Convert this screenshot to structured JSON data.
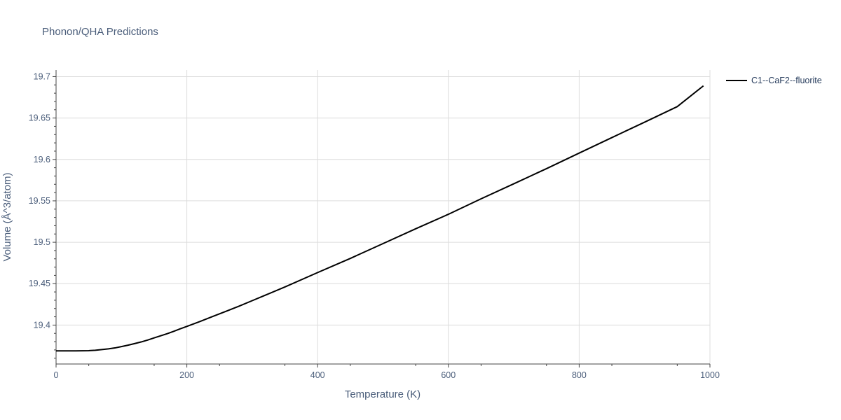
{
  "chart_data": {
    "type": "line",
    "title": "Phonon/QHA Predictions",
    "xlabel": "Temperature (K)",
    "ylabel": "Volume (Å^3/atom)",
    "xlim": [
      0,
      1000
    ],
    "ylim": [
      19.353,
      19.708
    ],
    "x_ticks": [
      0,
      200,
      400,
      600,
      800,
      1000
    ],
    "y_ticks": [
      19.4,
      19.45,
      19.5,
      19.55,
      19.6,
      19.65,
      19.7
    ],
    "x_tick_labels": [
      "0",
      "200",
      "400",
      "600",
      "800",
      "1000"
    ],
    "y_tick_labels": [
      "19.4",
      "19.45",
      "19.5",
      "19.55",
      "19.6",
      "19.65",
      "19.7"
    ],
    "grid": true,
    "legend_position": "top-right",
    "series": [
      {
        "name": "C1--CaF2--fluorite",
        "color": "#000000",
        "x": [
          0,
          10,
          20,
          30,
          40,
          50,
          60,
          70,
          80,
          90,
          100,
          110,
          120,
          130,
          140,
          150,
          160,
          170,
          180,
          190,
          200,
          220,
          240,
          260,
          280,
          300,
          350,
          400,
          450,
          500,
          550,
          600,
          650,
          700,
          750,
          800,
          850,
          900,
          950,
          990
        ],
        "y": [
          19.3688,
          19.3688,
          19.3689,
          19.3689,
          19.369,
          19.3691,
          19.3696,
          19.3704,
          19.3713,
          19.3724,
          19.374,
          19.3757,
          19.3776,
          19.3796,
          19.3819,
          19.3845,
          19.3871,
          19.3896,
          19.3925,
          19.3955,
          19.3984,
          19.4043,
          19.4105,
          19.4167,
          19.4229,
          19.4295,
          19.446,
          19.4634,
          19.4805,
          19.4984,
          19.5163,
          19.5338,
          19.5525,
          19.5706,
          19.5889,
          19.6077,
          19.6264,
          19.645,
          19.6638,
          19.6889
        ]
      }
    ]
  }
}
